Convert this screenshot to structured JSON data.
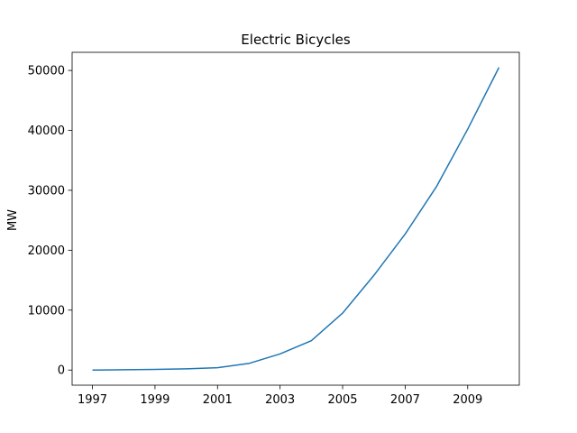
{
  "chart_data": {
    "type": "line",
    "title": "Electric Bicycles",
    "xlabel": "",
    "ylabel": "MW",
    "xlim": [
      1996.35,
      2010.65
    ],
    "ylim": [
      -2525,
      53025
    ],
    "xticks": [
      1997,
      1999,
      2001,
      2003,
      2005,
      2007,
      2009
    ],
    "xtick_labels": [
      "1997",
      "1999",
      "2001",
      "2003",
      "2005",
      "2007",
      "2009"
    ],
    "yticks": [
      0,
      10000,
      20000,
      30000,
      40000,
      50000
    ],
    "ytick_labels": [
      "0",
      "10000",
      "20000",
      "30000",
      "40000",
      "50000"
    ],
    "grid": false,
    "color": "#1f77b4",
    "series": [
      {
        "x": [
          1997,
          1998,
          1999,
          2000,
          2001,
          2002,
          2003,
          2004,
          2005,
          2006,
          2007,
          2008,
          2009,
          2010
        ],
        "values": [
          0,
          50,
          100,
          200,
          400,
          1100,
          2700,
          4900,
          9500,
          15800,
          22700,
          30600,
          40200,
          50500
        ]
      }
    ]
  }
}
